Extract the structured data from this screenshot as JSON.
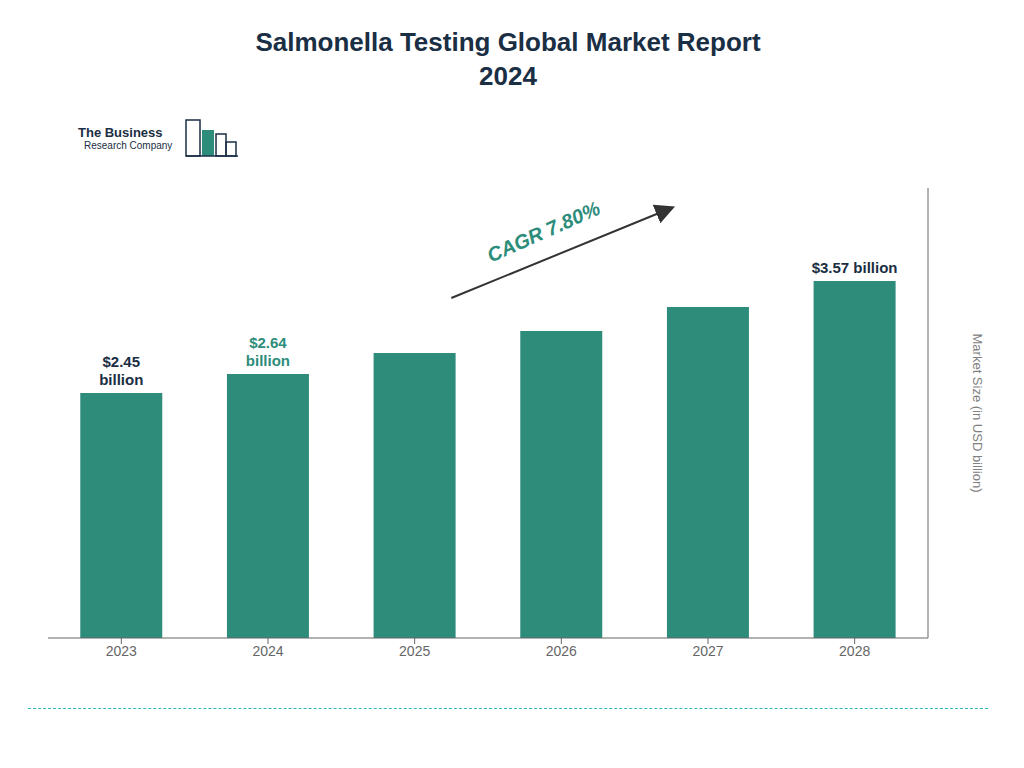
{
  "chart_data": {
    "type": "bar",
    "title": "Salmonella Testing Global Market Report\n2024",
    "categories": [
      "2023",
      "2024",
      "2025",
      "2026",
      "2027",
      "2028"
    ],
    "values": [
      2.45,
      2.64,
      2.85,
      3.07,
      3.31,
      3.57
    ],
    "color": "#2d8c7a",
    "ylabel": "Market Size (in USD billion)",
    "ylim": [
      0,
      4.5
    ],
    "tick_labels": "x",
    "annotations": [
      {
        "text": "$2.45\nbillion",
        "category": "2023",
        "color": "#1a2e44"
      },
      {
        "text": "$2.64\nbillion",
        "category": "2024",
        "color": "#2d8c7a"
      },
      {
        "text": "$3.57 billion",
        "category": "2028",
        "color": "#1a2e44"
      },
      {
        "text": "CAGR 7.80%",
        "color": "#2d8c7a"
      },
      {
        "text": "The Business",
        "color": "#1a2e44"
      },
      {
        "text": "Research Company",
        "color": "#1a2e44"
      }
    ]
  }
}
